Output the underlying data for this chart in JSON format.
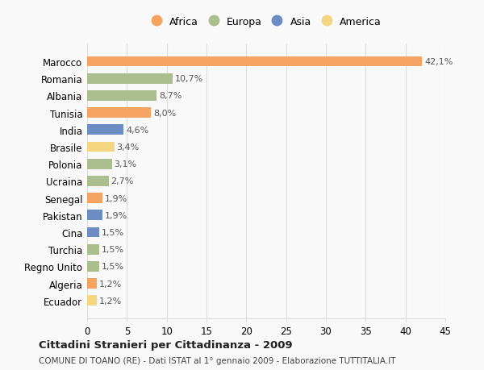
{
  "countries": [
    "Marocco",
    "Romania",
    "Albania",
    "Tunisia",
    "India",
    "Brasile",
    "Polonia",
    "Ucraina",
    "Senegal",
    "Pakistan",
    "Cina",
    "Turchia",
    "Regno Unito",
    "Algeria",
    "Ecuador"
  ],
  "values": [
    42.1,
    10.7,
    8.7,
    8.0,
    4.6,
    3.4,
    3.1,
    2.7,
    1.9,
    1.9,
    1.5,
    1.5,
    1.5,
    1.2,
    1.2
  ],
  "labels": [
    "42,1%",
    "10,7%",
    "8,7%",
    "8,0%",
    "4,6%",
    "3,4%",
    "3,1%",
    "2,7%",
    "1,9%",
    "1,9%",
    "1,5%",
    "1,5%",
    "1,5%",
    "1,2%",
    "1,2%"
  ],
  "continents": [
    "Africa",
    "Europa",
    "Europa",
    "Africa",
    "Asia",
    "America",
    "Europa",
    "Europa",
    "Africa",
    "Asia",
    "Asia",
    "Europa",
    "Europa",
    "Africa",
    "America"
  ],
  "continent_colors": {
    "Africa": "#F4A460",
    "Europa": "#ADBE8E",
    "Asia": "#6B8DC4",
    "America": "#F5D680"
  },
  "legend_entries": [
    "Africa",
    "Europa",
    "Asia",
    "America"
  ],
  "legend_colors": [
    "#F4A460",
    "#ADBE8E",
    "#6B8DC4",
    "#F5D680"
  ],
  "xlim": [
    0,
    45
  ],
  "xticks": [
    0,
    5,
    10,
    15,
    20,
    25,
    30,
    35,
    40,
    45
  ],
  "title": "Cittadini Stranieri per Cittadinanza - 2009",
  "subtitle": "COMUNE DI TOANO (RE) - Dati ISTAT al 1° gennaio 2009 - Elaborazione TUTTITALIA.IT",
  "background_color": "#f9f9f9",
  "grid_color": "#dddddd"
}
